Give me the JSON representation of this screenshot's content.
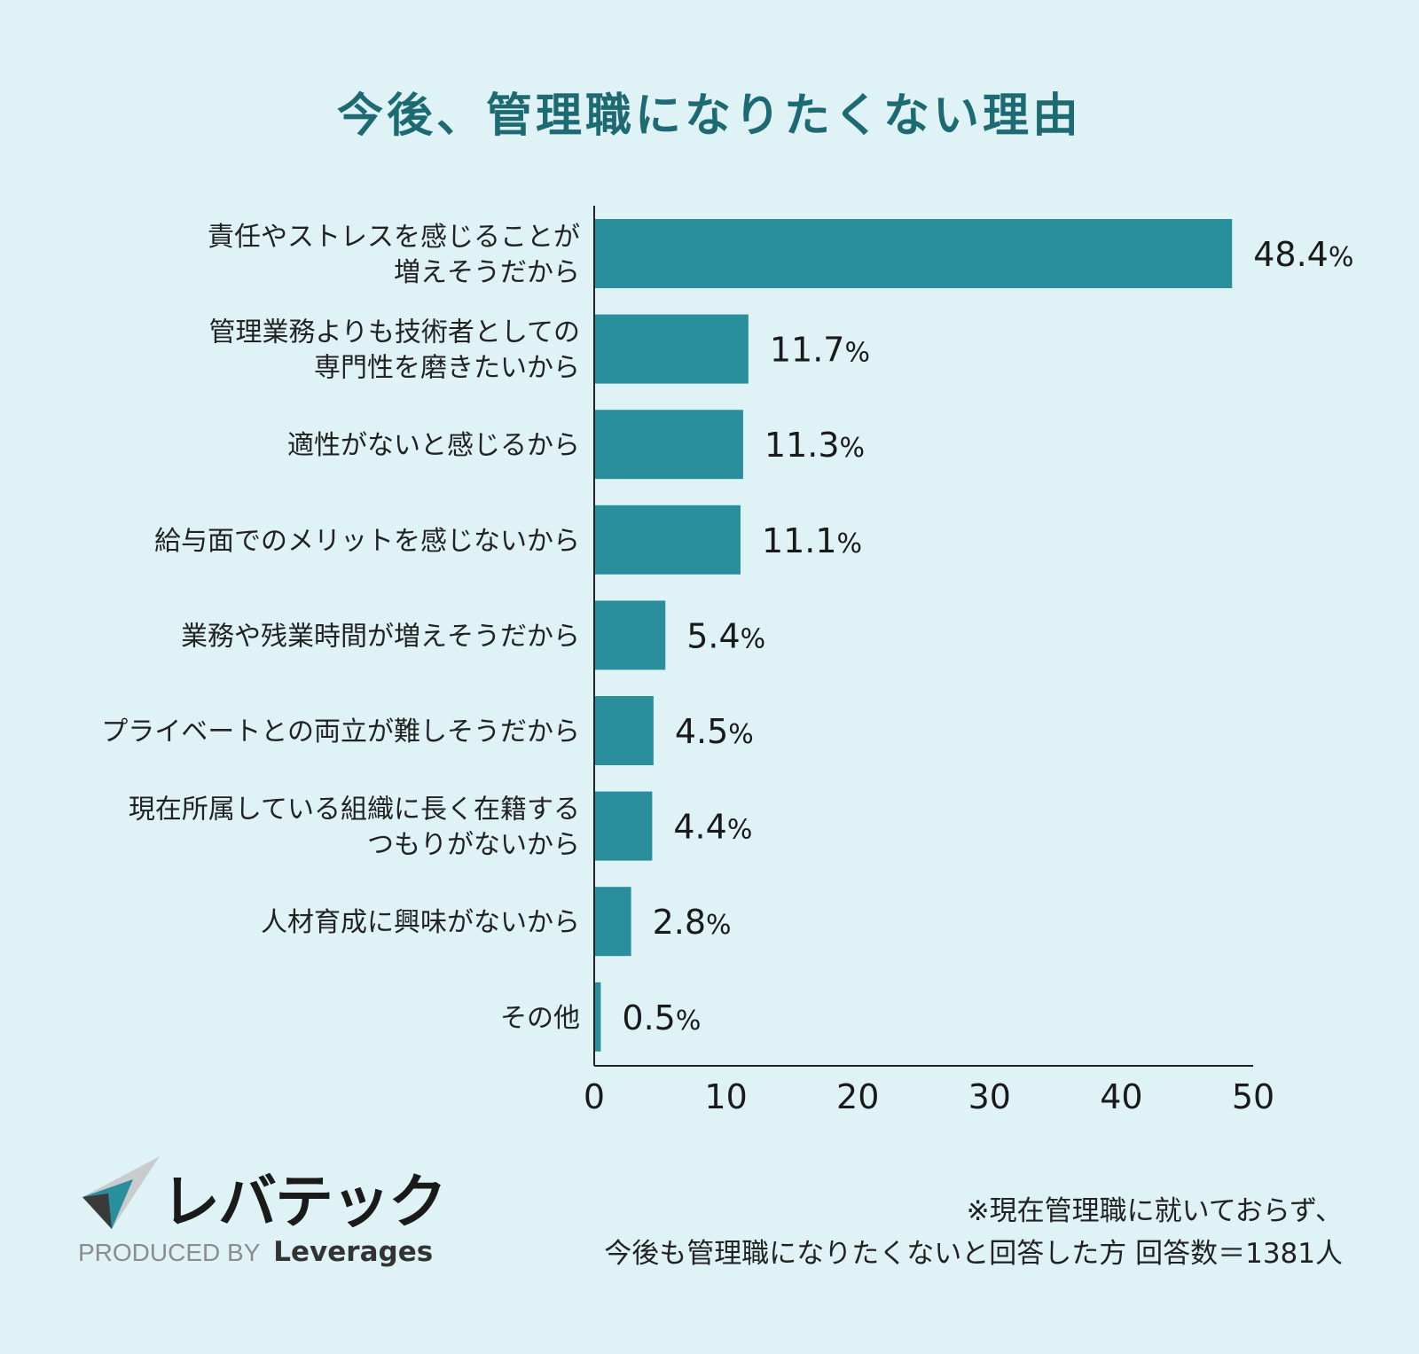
{
  "title": "今後、管理職になりたくない理由",
  "chart_data": {
    "type": "bar",
    "orientation": "horizontal",
    "title": "今後、管理職になりたくない理由",
    "categories": [
      [
        "責任やストレスを感じることが",
        "増えそうだから"
      ],
      [
        "管理業務よりも技術者としての",
        "専門性を磨きたいから"
      ],
      [
        "適性がないと感じるから"
      ],
      [
        "給与面でのメリットを感じないから"
      ],
      [
        "業務や残業時間が増えそうだから"
      ],
      [
        "プライベートとの両立が難しそうだから"
      ],
      [
        "現在所属している組織に長く在籍する",
        "つもりがないから"
      ],
      [
        "人材育成に興味がないから"
      ],
      [
        "その他"
      ]
    ],
    "values": [
      48.4,
      11.7,
      11.3,
      11.1,
      5.4,
      4.5,
      4.4,
      2.8,
      0.5
    ],
    "value_labels": [
      "48.4",
      "11.7",
      "11.3",
      "11.1",
      "5.4",
      "4.5",
      "4.4",
      "2.8",
      "0.5"
    ],
    "unit": "%",
    "xlim": [
      0,
      50
    ],
    "xticks": [
      0,
      10,
      20,
      30,
      40,
      50
    ],
    "grid": false,
    "bar_color": "#2a8f9c"
  },
  "logo": {
    "name": "レバテック",
    "produced_by": "PRODUCED BY",
    "company": "Leverages"
  },
  "note": {
    "line1": "※現在管理職に就いておらず、",
    "line2": "今後も管理職になりたくないと回答した方 回答数＝1381人"
  }
}
